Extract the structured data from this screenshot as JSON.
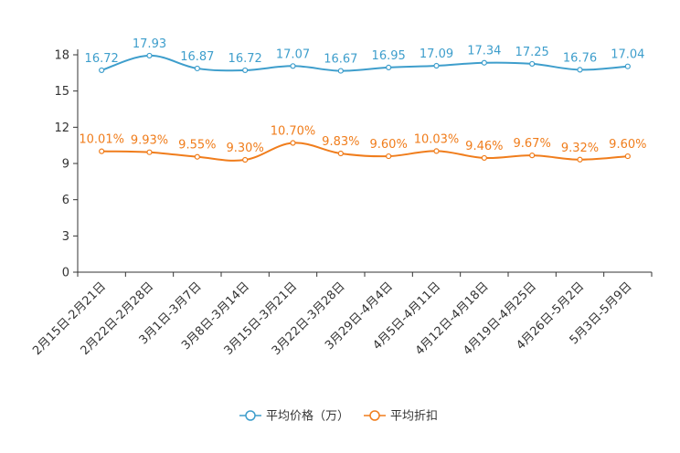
{
  "chart_data": {
    "type": "line",
    "categories": [
      "2月15日-2月21日",
      "2月22日-2月28日",
      "3月1日-3月7日",
      "3月8日-3月14日",
      "3月15日-3月21日",
      "3月22日-3月28日",
      "3月29日-4月4日",
      "4月5日-4月11日",
      "4月12日-4月18日",
      "4月19日-4月25日",
      "4月26日-5月2日",
      "5月3日-5月9日"
    ],
    "ylim": [
      0,
      18
    ],
    "yticks": [
      0,
      3,
      6,
      9,
      12,
      15,
      18
    ],
    "series": [
      {
        "name": "平均价格（万）",
        "color": "#3e9ecc",
        "values": [
          16.72,
          17.93,
          16.87,
          16.72,
          17.07,
          16.67,
          16.95,
          17.09,
          17.34,
          17.25,
          16.76,
          17.04
        ],
        "labels": [
          "16.72",
          "17.93",
          "16.87",
          "16.72",
          "17.07",
          "16.67",
          "16.95",
          "17.09",
          "17.34",
          "17.25",
          "16.76",
          "17.04"
        ]
      },
      {
        "name": "平均折扣",
        "color": "#f07d1c",
        "values": [
          10.01,
          9.93,
          9.55,
          9.3,
          10.7,
          9.83,
          9.6,
          10.03,
          9.46,
          9.67,
          9.32,
          9.6
        ],
        "labels": [
          "10.01%",
          "9.93%",
          "9.55%",
          "9.30%",
          "10.70%",
          "9.83%",
          "9.60%",
          "10.03%",
          "9.46%",
          "9.67%",
          "9.32%",
          "9.60%"
        ]
      }
    ],
    "legend_position": "bottom-center",
    "grid": false
  }
}
